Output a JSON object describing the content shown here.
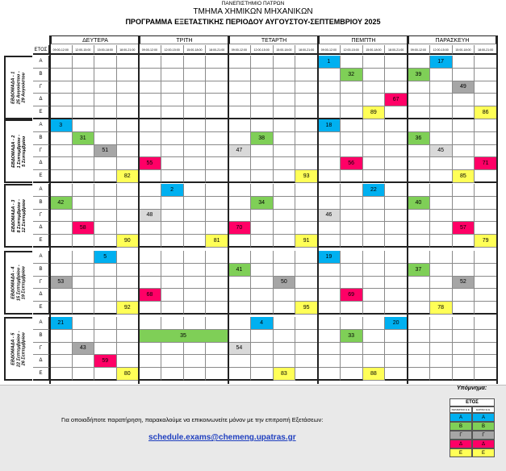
{
  "header": {
    "university": "ΠΑΝΕΠΙΣΤΗΜΙΟ ΠΑΤΡΩΝ",
    "department": "ΤΜΗΜΑ ΧΗΜΙΚΩΝ ΜΗΧΑΝΙΚΩΝ",
    "title": "ΠΡΟΓΡΑΜΜΑ ΕΞΕΤΑΣΤΙΚΗΣ ΠΕΡΙΟΔΟΥ ΑΥΓΟΥΣΤΟΥ-ΣΕΠΤΕΜΒΡΙΟΥ 2025"
  },
  "year_header": "ΕΤΟΣ",
  "days": [
    "ΔΕΥΤΕΡΑ",
    "ΤΡΙΤΗ",
    "ΤΕΤΑΡΤΗ",
    "ΠΕΜΠΤΗ",
    "ΠΑΡΑΣΚΕΥΗ"
  ],
  "slots": [
    "09:00-12:00",
    "12:00-15:00",
    "15:00-18:00",
    "18:00-21:00"
  ],
  "years": [
    "Α",
    "Β",
    "Γ",
    "Δ",
    "Ε"
  ],
  "weeks": [
    {
      "label": "ΕΒΔΟΜΑΔΑ - 1",
      "dates": [
        "25 Αυγούστου -",
        "29 Αυγούστου"
      ]
    },
    {
      "label": "ΕΒΔΟΜΑΔΑ - 2",
      "dates": [
        "1 Σεπτεμβρίου -",
        "5 Σεπτεμβρίου"
      ]
    },
    {
      "label": "ΕΒΔΟΜΑΔΑ - 3",
      "dates": [
        "8 Σεπτεμβρίου -",
        "12 Σεπτεμβρίου"
      ]
    },
    {
      "label": "ΕΒΔΟΜΑΔΑ - 4",
      "dates": [
        "15 Σεπτεμβρίου -",
        "19 Σεπτεμβρίου"
      ]
    },
    {
      "label": "ΕΒΔΟΜΑΔΑ - 5",
      "dates": [
        "22 Σεπτεμβρίου -",
        "26 Σεπτεμβρίου"
      ]
    }
  ],
  "exams": [
    {
      "week": 1,
      "day": 4,
      "slot": 1,
      "year": "Α",
      "code": "1"
    },
    {
      "week": 1,
      "day": 4,
      "slot": 2,
      "year": "Β",
      "code": "32"
    },
    {
      "week": 1,
      "day": 4,
      "slot": 4,
      "year": "Δ",
      "code": "67"
    },
    {
      "week": 1,
      "day": 4,
      "slot": 3,
      "year": "Ε",
      "code": "89"
    },
    {
      "week": 1,
      "day": 5,
      "slot": 2,
      "year": "Α",
      "code": "17"
    },
    {
      "week": 1,
      "day": 5,
      "slot": 1,
      "year": "Β",
      "code": "39"
    },
    {
      "week": 1,
      "day": 5,
      "slot": 3,
      "year": "Γ",
      "code": "49"
    },
    {
      "week": 1,
      "day": 5,
      "slot": 4,
      "year": "Ε",
      "code": "86"
    },
    {
      "week": 2,
      "day": 1,
      "slot": 1,
      "year": "Α",
      "code": "3"
    },
    {
      "week": 2,
      "day": 1,
      "slot": 2,
      "year": "Β",
      "code": "31"
    },
    {
      "week": 2,
      "day": 1,
      "slot": 3,
      "year": "Γ",
      "code": "51"
    },
    {
      "week": 2,
      "day": 1,
      "slot": 4,
      "year": "Ε",
      "code": "82"
    },
    {
      "week": 2,
      "day": 2,
      "slot": 1,
      "year": "Δ",
      "code": "55"
    },
    {
      "week": 2,
      "day": 3,
      "slot": 2,
      "year": "Β",
      "code": "38"
    },
    {
      "week": 2,
      "day": 3,
      "slot": 1,
      "year": "Γ",
      "code": "47"
    },
    {
      "week": 2,
      "day": 3,
      "slot": 4,
      "year": "Ε",
      "code": "93"
    },
    {
      "week": 2,
      "day": 4,
      "slot": 1,
      "year": "Α",
      "code": "18"
    },
    {
      "week": 2,
      "day": 4,
      "slot": 2,
      "year": "Δ",
      "code": "56"
    },
    {
      "week": 2,
      "day": 5,
      "slot": 1,
      "year": "Β",
      "code": "36"
    },
    {
      "week": 2,
      "day": 5,
      "slot": 2,
      "year": "Γ",
      "code": "45"
    },
    {
      "week": 2,
      "day": 5,
      "slot": 4,
      "year": "Δ",
      "code": "71"
    },
    {
      "week": 2,
      "day": 5,
      "slot": 3,
      "year": "Ε",
      "code": "85"
    },
    {
      "week": 3,
      "day": 1,
      "slot": 1,
      "year": "Β",
      "code": "42"
    },
    {
      "week": 3,
      "day": 1,
      "slot": 2,
      "year": "Δ",
      "code": "58"
    },
    {
      "week": 3,
      "day": 1,
      "slot": 4,
      "year": "Ε",
      "code": "90"
    },
    {
      "week": 3,
      "day": 2,
      "slot": 2,
      "year": "Α",
      "code": "2"
    },
    {
      "week": 3,
      "day": 2,
      "slot": 1,
      "year": "Γ",
      "code": "48"
    },
    {
      "week": 3,
      "day": 2,
      "slot": 4,
      "year": "Ε",
      "code": "81"
    },
    {
      "week": 3,
      "day": 3,
      "slot": 2,
      "year": "Β",
      "code": "34"
    },
    {
      "week": 3,
      "day": 3,
      "slot": 1,
      "year": "Δ",
      "code": "70"
    },
    {
      "week": 3,
      "day": 3,
      "slot": 4,
      "year": "Ε",
      "code": "91"
    },
    {
      "week": 3,
      "day": 4,
      "slot": 3,
      "year": "Α",
      "code": "22"
    },
    {
      "week": 3,
      "day": 4,
      "slot": 1,
      "year": "Γ",
      "code": "46"
    },
    {
      "week": 3,
      "day": 5,
      "slot": 1,
      "year": "Β",
      "code": "40"
    },
    {
      "week": 3,
      "day": 5,
      "slot": 3,
      "year": "Δ",
      "code": "57"
    },
    {
      "week": 3,
      "day": 5,
      "slot": 4,
      "year": "Ε",
      "code": "79"
    },
    {
      "week": 4,
      "day": 1,
      "slot": 3,
      "year": "Α",
      "code": "5"
    },
    {
      "week": 4,
      "day": 1,
      "slot": 1,
      "year": "Γ",
      "code": "53"
    },
    {
      "week": 4,
      "day": 1,
      "slot": 4,
      "year": "Ε",
      "code": "92"
    },
    {
      "week": 4,
      "day": 2,
      "slot": 1,
      "year": "Δ",
      "code": "68"
    },
    {
      "week": 4,
      "day": 3,
      "slot": 1,
      "year": "Β",
      "code": "41"
    },
    {
      "week": 4,
      "day": 3,
      "slot": 3,
      "year": "Γ",
      "code": "50"
    },
    {
      "week": 4,
      "day": 3,
      "slot": 4,
      "year": "Ε",
      "code": "95"
    },
    {
      "week": 4,
      "day": 4,
      "slot": 1,
      "year": "Α",
      "code": "19"
    },
    {
      "week": 4,
      "day": 4,
      "slot": 2,
      "year": "Δ",
      "code": "69"
    },
    {
      "week": 4,
      "day": 5,
      "slot": 1,
      "year": "Β",
      "code": "37"
    },
    {
      "week": 4,
      "day": 5,
      "slot": 3,
      "year": "Γ",
      "code": "52"
    },
    {
      "week": 4,
      "day": 5,
      "slot": 2,
      "year": "Ε",
      "code": "78"
    },
    {
      "week": 5,
      "day": 1,
      "slot": 1,
      "year": "Α",
      "code": "21"
    },
    {
      "week": 5,
      "day": 1,
      "slot": 2,
      "year": "Γ",
      "code": "43"
    },
    {
      "week": 5,
      "day": 1,
      "slot": 3,
      "year": "Δ",
      "code": "59"
    },
    {
      "week": 5,
      "day": 1,
      "slot": 4,
      "year": "Ε",
      "code": "80"
    },
    {
      "week": 5,
      "day": 2,
      "slot": 1,
      "span": 4,
      "year": "Β",
      "code": "35"
    },
    {
      "week": 5,
      "day": 3,
      "slot": 2,
      "year": "Α",
      "code": "4"
    },
    {
      "week": 5,
      "day": 3,
      "slot": 1,
      "year": "Γ",
      "code": "54"
    },
    {
      "week": 5,
      "day": 3,
      "slot": 3,
      "year": "Ε",
      "code": "83"
    },
    {
      "week": 5,
      "day": 4,
      "slot": 4,
      "year": "Α",
      "code": "20"
    },
    {
      "week": 5,
      "day": 4,
      "slot": 2,
      "year": "Β",
      "code": "33"
    },
    {
      "week": 5,
      "day": 4,
      "slot": 3,
      "year": "Ε",
      "code": "88"
    }
  ],
  "year_colors": {
    "Α": "#00b0f0",
    "Β": "#7fcf57",
    "Γ": "#a6a6a6",
    "Δ": "#ff0066",
    "Ε": "#ffff57"
  },
  "footer": {
    "legend_title": "Υπόμνημα:",
    "legend_header": "ΕΤΟΣ",
    "legend_col1": "ΧΕΙΜΕΡΙΝΟ Ε.Ε.",
    "legend_col2": "ΕΑΡΙΝΟ Ε.Ε.",
    "notice": "Για οποιαδήποτε παρατήρηση, παρακαλούμε να επικοινωνείτε μόνον με την επιτροπή Εξετάσεων:",
    "email": "schedule.exams@chemeng.upatras.gr"
  }
}
